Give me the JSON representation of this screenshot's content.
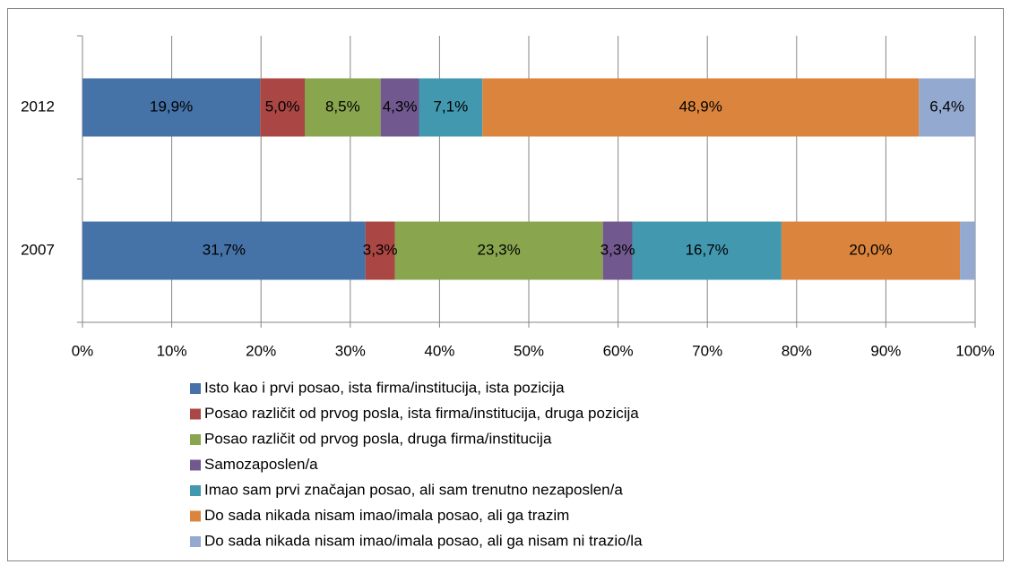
{
  "chart_data": {
    "type": "stacked-bar-horizontal",
    "categories": [
      "2012",
      "2007"
    ],
    "series": [
      {
        "name": "Isto kao i prvi posao, ista firma/institucija, ista pozicija",
        "color": "#4572a7",
        "values": [
          19.9,
          31.7
        ],
        "value_labels": [
          "19,9%",
          "31,7%"
        ]
      },
      {
        "name": "Posao različit od prvog posla, ista firma/institucija, druga pozicija",
        "color": "#aa4643",
        "values": [
          5.0,
          3.3
        ],
        "value_labels": [
          "5,0%",
          "3,3%"
        ]
      },
      {
        "name": "Posao različit od prvog posla, druga firma/institucija",
        "color": "#89a54e",
        "values": [
          8.5,
          23.3
        ],
        "value_labels": [
          "8,5%",
          "23,3%"
        ]
      },
      {
        "name": "Samozaposlen/a",
        "color": "#71588f",
        "values": [
          4.3,
          3.3
        ],
        "value_labels": [
          "4,3%",
          "3,3%"
        ]
      },
      {
        "name": "Imao sam prvi značajan posao, ali sam trenutno nezaposlen/a",
        "color": "#4198af",
        "values": [
          7.1,
          16.7
        ],
        "value_labels": [
          "7,1%",
          "16,7%"
        ]
      },
      {
        "name": "Do sada nikada nisam imao/imala posao, ali ga trazim",
        "color": "#db843d",
        "values": [
          48.9,
          20.0
        ],
        "value_labels": [
          "48,9%",
          "20,0%"
        ]
      },
      {
        "name": "Do sada nikada nisam imao/imala posao, ali ga nisam ni trazio/la",
        "color": "#93a9cf",
        "values": [
          6.4,
          1.7
        ],
        "value_labels": [
          "6,4%",
          null
        ]
      }
    ],
    "xlim": [
      0,
      100
    ],
    "xticks": [
      {
        "value": 0,
        "label": "0%"
      },
      {
        "value": 10,
        "label": "10%"
      },
      {
        "value": 20,
        "label": "20%"
      },
      {
        "value": 30,
        "label": "30%"
      },
      {
        "value": 40,
        "label": "40%"
      },
      {
        "value": 50,
        "label": "50%"
      },
      {
        "value": 60,
        "label": "60%"
      },
      {
        "value": 70,
        "label": "70%"
      },
      {
        "value": 80,
        "label": "80%"
      },
      {
        "value": 90,
        "label": "90%"
      },
      {
        "value": 100,
        "label": "100%"
      }
    ],
    "grid": true,
    "legend": "bottom"
  }
}
